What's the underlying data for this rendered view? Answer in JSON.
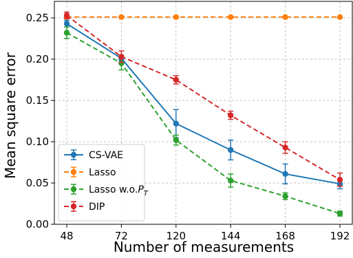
{
  "chart_data": {
    "type": "line",
    "xlabel": "Number of measurements",
    "ylabel": "Mean square error",
    "categories": [
      "48",
      "72",
      "120",
      "144",
      "168",
      "192"
    ],
    "ylim": [
      0.0,
      0.27
    ],
    "yticks": [
      "0.00",
      "0.05",
      "0.10",
      "0.15",
      "0.20",
      "0.25"
    ],
    "grid": true,
    "legend_position": "lower-left",
    "series": [
      {
        "name": "CS-VAE",
        "color": "#1f77b4",
        "dashed": false,
        "values": [
          0.243,
          0.201,
          0.122,
          0.09,
          0.061,
          0.049
        ],
        "errors": [
          0.004,
          0.003,
          0.017,
          0.012,
          0.012,
          0.006
        ]
      },
      {
        "name": "Lasso",
        "color": "#ff7f0e",
        "dashed": true,
        "values": [
          0.251,
          0.251,
          0.251,
          0.251,
          0.251,
          0.251
        ],
        "errors": [
          0.001,
          0.001,
          0.001,
          0.001,
          0.001,
          0.001
        ]
      },
      {
        "name": "Lasso w.o.",
        "subscript_name": "P",
        "subscript": "T",
        "color": "#2ca02c",
        "dashed": true,
        "values": [
          0.232,
          0.195,
          0.102,
          0.053,
          0.034,
          0.013
        ],
        "errors": [
          0.007,
          0.008,
          0.006,
          0.008,
          0.004,
          0.003
        ]
      },
      {
        "name": "DIP",
        "color": "#d62728",
        "dashed": true,
        "values": [
          0.253,
          0.203,
          0.175,
          0.132,
          0.093,
          0.054
        ],
        "errors": [
          0.004,
          0.007,
          0.005,
          0.005,
          0.007,
          0.008
        ]
      }
    ]
  }
}
